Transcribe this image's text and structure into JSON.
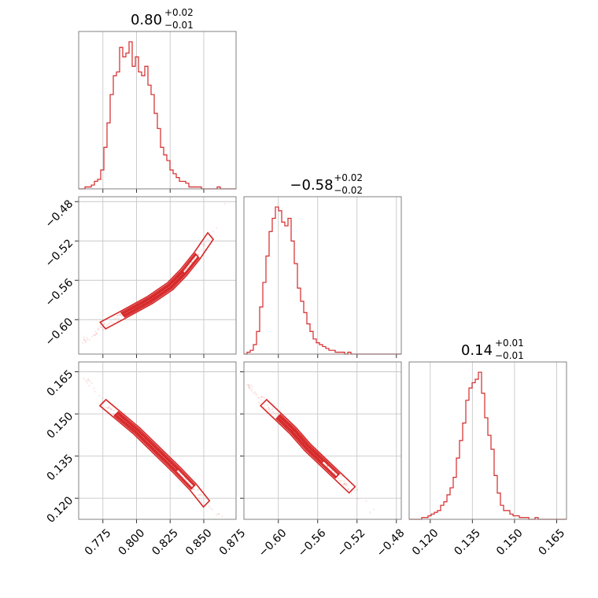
{
  "chart_data": {
    "type": "corner",
    "color": "#d62728",
    "parameters": [
      {
        "median": "0.80",
        "plus": "+0.02",
        "minus": "−0.01",
        "range": [
          0.757,
          0.874
        ],
        "ticks": [
          0.775,
          0.8,
          0.825,
          0.85,
          0.875
        ],
        "tick_labels": [
          "0.775",
          "0.800",
          "0.825",
          "0.850",
          "0.875"
        ]
      },
      {
        "median": "−0.58",
        "plus": "+0.02",
        "minus": "−0.02",
        "range": [
          -0.635,
          -0.475
        ],
        "ticks": [
          -0.6,
          -0.56,
          -0.52,
          -0.48
        ],
        "tick_labels": [
          "−0.60",
          "−0.56",
          "−0.52",
          "−0.48"
        ]
      },
      {
        "median": "0.14",
        "plus": "+0.01",
        "minus": "−0.01",
        "range": [
          0.1125,
          0.1685
        ],
        "ticks": [
          0.12,
          0.135,
          0.15,
          0.165
        ],
        "tick_labels": [
          "0.120",
          "0.135",
          "0.150",
          "0.165"
        ]
      }
    ],
    "histograms": [
      {
        "bin_start": 0.757,
        "bin_width": 0.00234,
        "counts": [
          0,
          0,
          1,
          1,
          2,
          4,
          5,
          10,
          22,
          35,
          50,
          60,
          62,
          75,
          70,
          72,
          78,
          65,
          70,
          62,
          60,
          65,
          55,
          50,
          40,
          32,
          22,
          18,
          15,
          10,
          8,
          6,
          4,
          4,
          3,
          1,
          1,
          1,
          1,
          0,
          0,
          0,
          0,
          0,
          1,
          0,
          0,
          0,
          0,
          0
        ]
      },
      {
        "bin_start": -0.635,
        "bin_width": 0.0032,
        "counts": [
          0,
          1,
          2,
          5,
          12,
          25,
          38,
          52,
          65,
          72,
          78,
          76,
          70,
          68,
          72,
          60,
          48,
          35,
          28,
          22,
          16,
          12,
          8,
          6,
          5,
          4,
          3,
          2,
          2,
          1,
          1,
          1,
          0,
          1,
          0,
          0,
          0,
          0,
          0,
          0,
          0,
          0,
          0,
          0,
          0,
          0,
          0,
          0,
          0,
          0
        ]
      },
      {
        "bin_start": 0.1125,
        "bin_width": 0.00112,
        "counts": [
          0,
          0,
          0,
          0,
          1,
          1,
          2,
          3,
          4,
          5,
          8,
          10,
          14,
          18,
          24,
          35,
          45,
          55,
          68,
          75,
          78,
          80,
          84,
          72,
          58,
          48,
          40,
          25,
          15,
          8,
          5,
          5,
          3,
          2,
          2,
          1,
          1,
          1,
          0,
          0,
          1,
          0,
          0,
          0,
          0,
          0,
          0,
          0,
          0,
          0
        ]
      }
    ],
    "scatter_pairs": [
      {
        "x_param": 0,
        "y_param": 1,
        "x": [
          0.762,
          0.775,
          0.79,
          0.81,
          0.825,
          0.835,
          0.845,
          0.855,
          0.866
        ],
        "y": [
          -0.621,
          -0.606,
          -0.595,
          -0.58,
          -0.566,
          -0.552,
          -0.535,
          -0.515,
          -0.483
        ]
      },
      {
        "x_param": 0,
        "y_param": 2,
        "x": [
          0.764,
          0.775,
          0.785,
          0.8,
          0.815,
          0.83,
          0.842,
          0.852,
          0.864
        ],
        "y": [
          0.162,
          0.154,
          0.15,
          0.144,
          0.137,
          0.13,
          0.124,
          0.118,
          0.114
        ]
      },
      {
        "x_param": 1,
        "y_param": 2,
        "x": [
          -0.63,
          -0.615,
          -0.6,
          -0.585,
          -0.57,
          -0.555,
          -0.54,
          -0.525,
          -0.505
        ],
        "y": [
          0.16,
          0.154,
          0.149,
          0.144,
          0.138,
          0.133,
          0.128,
          0.123,
          0.116
        ]
      }
    ]
  }
}
